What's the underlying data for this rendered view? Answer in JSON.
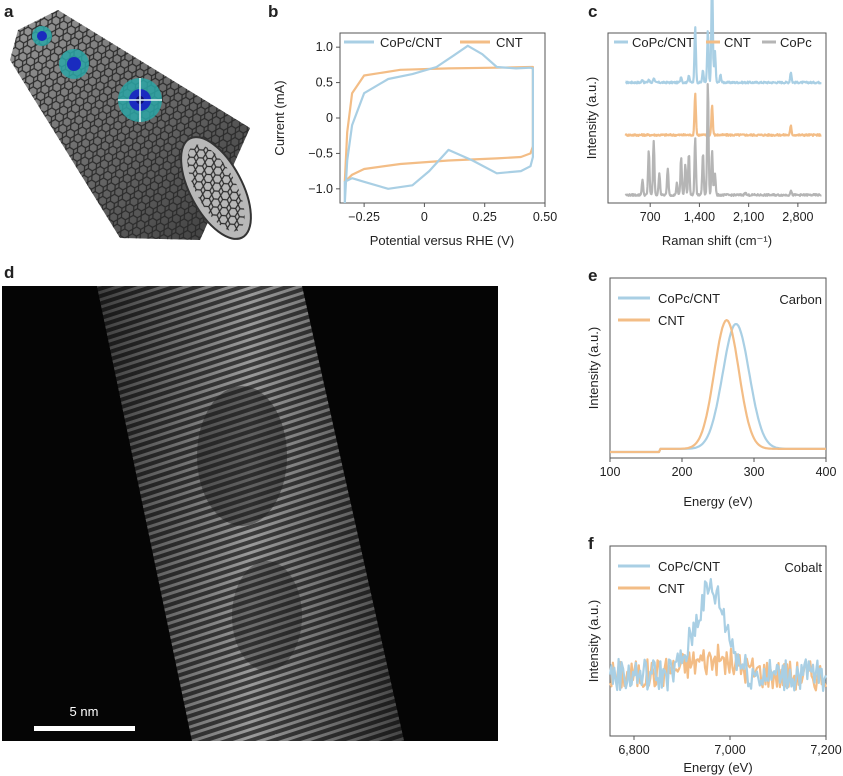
{
  "panel_letters": {
    "a": "a",
    "b": "b",
    "c": "c",
    "d": "d",
    "e": "e",
    "f": "f"
  },
  "colors": {
    "copc_cnt": "#a9cfe4",
    "cnt": "#f3bd86",
    "copc": "#b5b5b5",
    "frame": "#555555"
  },
  "panel_a": {
    "description_icon": "cnt-molecular-render"
  },
  "panel_d": {
    "scale_bar_label": "5 nm",
    "scale_bar_value_nm": 5
  },
  "chart_data": [
    {
      "panel": "b",
      "type": "line",
      "xlabel": "Potential versus RHE (V)",
      "ylabel": "Current (mA)",
      "xlim": [
        -0.35,
        0.5
      ],
      "ylim": [
        -1.2,
        1.2
      ],
      "xticks": [
        -0.25,
        0,
        0.25,
        0.5
      ],
      "xtick_labels": [
        "−0.25",
        "0",
        "0.25",
        "0.50"
      ],
      "yticks": [
        -1.0,
        -0.5,
        0,
        0.5,
        1.0
      ],
      "ytick_labels": [
        "−1.0",
        "−0.5",
        "0",
        "0.5",
        "1.0"
      ],
      "legend_placement": "top",
      "series": [
        {
          "name": "CoPc/CNT",
          "color": "#a9cfe4",
          "x": [
            -0.33,
            -0.32,
            -0.3,
            -0.25,
            -0.15,
            -0.05,
            0.05,
            0.12,
            0.18,
            0.24,
            0.3,
            0.38,
            0.44,
            0.45,
            0.45,
            0.44,
            0.4,
            0.3,
            0.2,
            0.1,
            0.02,
            -0.05,
            -0.15,
            -0.25,
            -0.3,
            -0.33,
            -0.33
          ],
          "y": [
            -1.2,
            -0.6,
            -0.1,
            0.35,
            0.55,
            0.62,
            0.72,
            0.88,
            1.02,
            0.9,
            0.72,
            0.7,
            0.71,
            0.7,
            -0.55,
            -0.68,
            -0.75,
            -0.78,
            -0.6,
            -0.45,
            -0.75,
            -0.95,
            -1.0,
            -0.9,
            -0.85,
            -0.9,
            -1.2
          ]
        },
        {
          "name": "CNT",
          "color": "#f3bd86",
          "x": [
            -0.33,
            -0.32,
            -0.3,
            -0.25,
            -0.1,
            0.1,
            0.3,
            0.44,
            0.45,
            0.45,
            0.44,
            0.4,
            0.3,
            0.1,
            -0.1,
            -0.25,
            -0.3,
            -0.33
          ],
          "y": [
            -0.9,
            -0.2,
            0.35,
            0.6,
            0.68,
            0.7,
            0.71,
            0.72,
            0.72,
            -0.4,
            -0.5,
            -0.55,
            -0.57,
            -0.6,
            -0.65,
            -0.72,
            -0.8,
            -0.9
          ]
        }
      ]
    },
    {
      "panel": "c",
      "type": "line",
      "xlabel": "Raman shift (cm⁻¹)",
      "ylabel": "Intensity (a.u.)",
      "xlim": [
        100,
        3200
      ],
      "xticks": [
        700,
        1400,
        2100,
        2800
      ],
      "xtick_labels": [
        "700",
        "1,400",
        "2,100",
        "2,800"
      ],
      "legend_placement": "top",
      "series": [
        {
          "name": "CoPc/CNT",
          "color": "#a9cfe4",
          "offset": 0.75,
          "peaks": [
            [
              590,
              0.02
            ],
            [
              680,
              0.02
            ],
            [
              750,
              0.03
            ],
            [
              1140,
              0.04
            ],
            [
              1250,
              0.05
            ],
            [
              1340,
              0.38
            ],
            [
              1450,
              0.08
            ],
            [
              1520,
              0.35
            ],
            [
              1580,
              0.75
            ],
            [
              1620,
              0.22
            ],
            [
              1700,
              0.05
            ],
            [
              2700,
              0.07
            ]
          ]
        },
        {
          "name": "CNT",
          "color": "#f3bd86",
          "offset": 0.4,
          "peaks": [
            [
              1340,
              0.28
            ],
            [
              1580,
              0.2
            ],
            [
              2700,
              0.06
            ]
          ]
        },
        {
          "name": "CoPc",
          "color": "#b5b5b5",
          "offset": 0.0,
          "peaks": [
            [
              590,
              0.1
            ],
            [
              680,
              0.3
            ],
            [
              750,
              0.36
            ],
            [
              830,
              0.15
            ],
            [
              950,
              0.18
            ],
            [
              1080,
              0.08
            ],
            [
              1140,
              0.25
            ],
            [
              1200,
              0.2
            ],
            [
              1250,
              0.28
            ],
            [
              1340,
              0.38
            ],
            [
              1450,
              0.28
            ],
            [
              1520,
              0.75
            ],
            [
              1580,
              0.3
            ],
            [
              1620,
              0.15
            ],
            [
              2050,
              0.02
            ],
            [
              2700,
              0.03
            ]
          ]
        }
      ]
    },
    {
      "panel": "e",
      "type": "line",
      "xlabel": "Energy (eV)",
      "ylabel": "Intensity (a.u.)",
      "xlim": [
        100,
        400
      ],
      "xticks": [
        100,
        200,
        300,
        400
      ],
      "xtick_labels": [
        "100",
        "200",
        "300",
        "400"
      ],
      "annotation": "Carbon",
      "legend_placement": "top-left",
      "series": [
        {
          "name": "CoPc/CNT",
          "color": "#a9cfe4",
          "center": 275,
          "width": 26,
          "height": 1.0
        },
        {
          "name": "CNT",
          "color": "#f3bd86",
          "center": 262,
          "width": 24,
          "height": 1.03
        }
      ]
    },
    {
      "panel": "f",
      "type": "line",
      "xlabel": "Energy (eV)",
      "ylabel": "Intensity (a.u.)",
      "xlim": [
        6750,
        7200
      ],
      "xticks": [
        6800,
        7000,
        7200
      ],
      "xtick_labels": [
        "6,800",
        "7,000",
        "7,200"
      ],
      "annotation": "Cobalt",
      "legend_placement": "top-left",
      "series": [
        {
          "name": "CoPc/CNT",
          "color": "#a9cfe4",
          "center": 6960,
          "width": 45,
          "height": 0.55,
          "noise": 0.22
        },
        {
          "name": "CNT",
          "color": "#f3bd86",
          "center": 6960,
          "width": 80,
          "height": 0.1,
          "noise": 0.2
        }
      ]
    }
  ]
}
